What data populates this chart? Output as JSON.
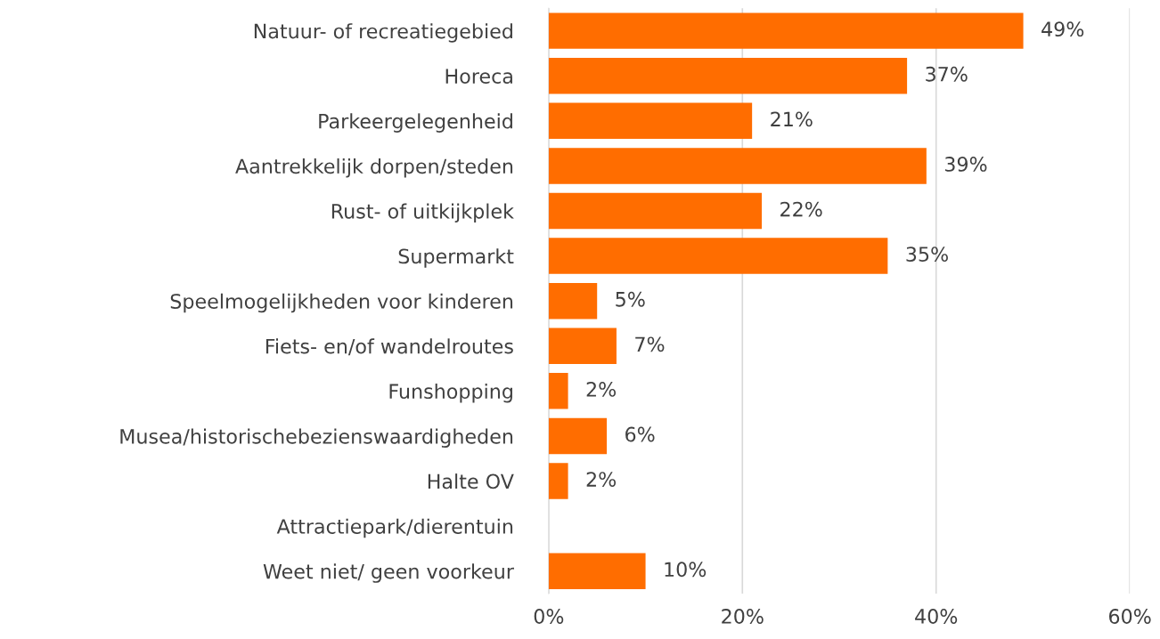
{
  "chart_data": {
    "type": "bar",
    "orientation": "horizontal",
    "categories": [
      "Natuur- of recreatiegebied",
      "Horeca",
      "Parkeergelegenheid",
      "Aantrekkelijk dorpen/steden",
      "Rust- of uitkijkplek",
      "Supermarkt",
      "Speelmogelijkheden voor kinderen",
      "Fiets- en/of wandelroutes",
      "Funshopping",
      "Musea/historischebezienswaardigheden",
      "Halte OV",
      "Attractiepark/dierentuin",
      "Weet niet/ geen voorkeur"
    ],
    "values": [
      49,
      37,
      21,
      39,
      22,
      35,
      5,
      7,
      2,
      6,
      2,
      0,
      10
    ],
    "value_labels": [
      "49%",
      "37%",
      "21%",
      "39%",
      "22%",
      "35%",
      "5%",
      "7%",
      "2%",
      "6%",
      "2%",
      null,
      "10%"
    ],
    "color": "#ff6d00",
    "xlim": [
      0,
      60
    ],
    "xticks": [
      {
        "value": 0,
        "label": "0%"
      },
      {
        "value": 20,
        "label": "20%"
      },
      {
        "value": 40,
        "label": "40%"
      },
      {
        "value": 60,
        "label": "60%"
      }
    ],
    "grid": "x"
  }
}
